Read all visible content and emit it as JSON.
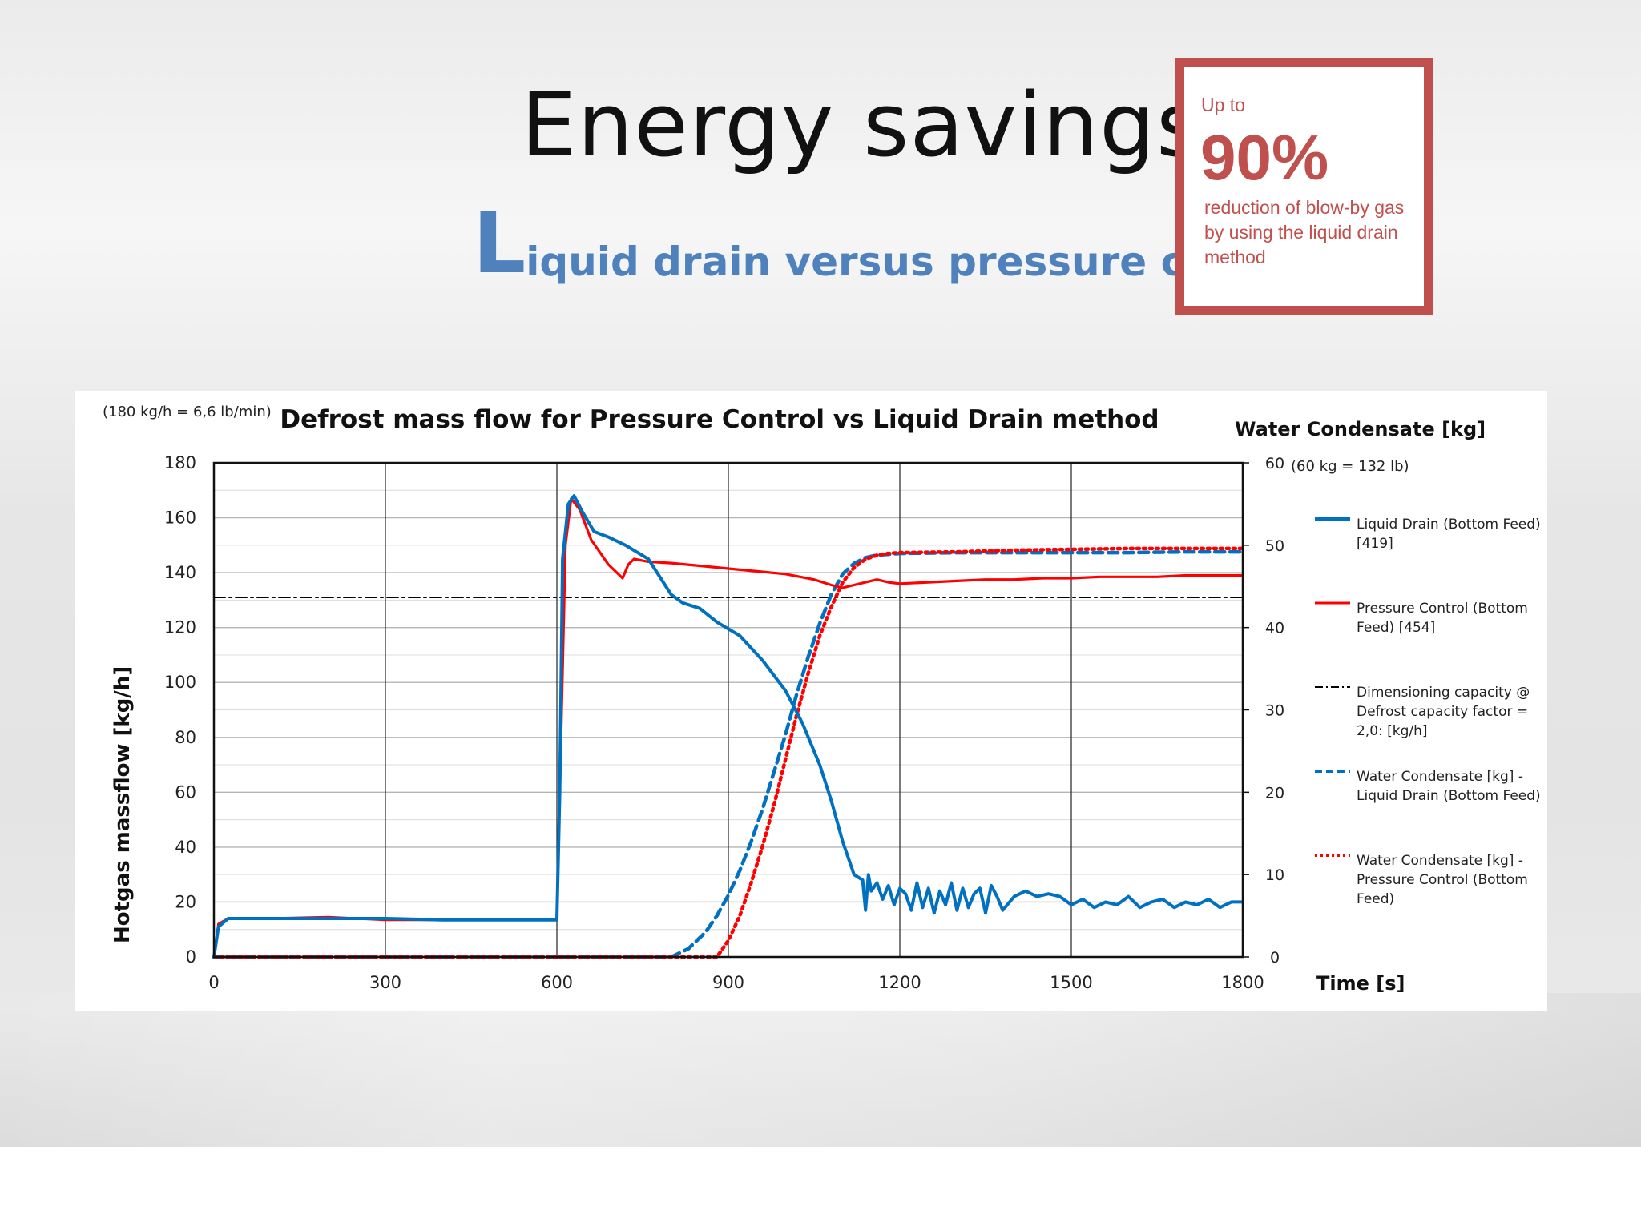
{
  "slide": {
    "title": "Energy savings",
    "subtitle_initial": "L",
    "subtitle_rest": "iquid drain versus pressure control",
    "accent_color": "#4f81bd",
    "callout_color": "#c0504d"
  },
  "callout": {
    "prefix": "Up to",
    "value": "90%",
    "description": "reduction of blow-by gas by using the liquid drain method"
  },
  "chart_data": {
    "type": "line",
    "title": "Defrost mass flow for Pressure Control vs Liquid Drain method",
    "note_left": "(180 kg/h = 6,6 lb/min)",
    "ylabel": "Hotgas massflow [kg/h]",
    "y2label": "Water Condensate [kg]",
    "y2_note": "(60 kg = 132 lb)",
    "xlabel": "Time [s]",
    "xlim": [
      0,
      1800
    ],
    "ylim": [
      0,
      180
    ],
    "y2lim": [
      0,
      60
    ],
    "xticks": [
      0,
      300,
      600,
      900,
      1200,
      1500,
      1800
    ],
    "yticks": [
      0,
      20,
      40,
      60,
      80,
      100,
      120,
      140,
      160,
      180
    ],
    "y2ticks": [
      0,
      10,
      20,
      30,
      40,
      50,
      60
    ],
    "grid": true,
    "legend_position": "right",
    "series": [
      {
        "name": "Liquid Drain (Bottom Feed) [419]",
        "axis": "left",
        "color": "#0070c0",
        "style": "solid",
        "x": [
          0,
          8,
          25,
          100,
          200,
          300,
          400,
          500,
          590,
          600,
          605,
          610,
          620,
          630,
          645,
          665,
          690,
          720,
          760,
          800,
          820,
          850,
          880,
          920,
          960,
          1000,
          1030,
          1060,
          1080,
          1100,
          1120,
          1135,
          1140,
          1145,
          1150,
          1160,
          1170,
          1180,
          1190,
          1200,
          1210,
          1220,
          1230,
          1240,
          1250,
          1260,
          1270,
          1280,
          1290,
          1300,
          1310,
          1320,
          1330,
          1340,
          1350,
          1360,
          1370,
          1380,
          1400,
          1420,
          1440,
          1460,
          1480,
          1500,
          1520,
          1540,
          1560,
          1580,
          1600,
          1620,
          1640,
          1660,
          1680,
          1700,
          1720,
          1740,
          1760,
          1780,
          1800
        ],
        "y": [
          0,
          11,
          14,
          14,
          14,
          14,
          13.5,
          13.5,
          13.5,
          13.5,
          60,
          145,
          165,
          168,
          162,
          155,
          153,
          150,
          145,
          132,
          129,
          127,
          122,
          117,
          108,
          97,
          85,
          70,
          57,
          42,
          30,
          28,
          17,
          30,
          24,
          27,
          21,
          26,
          19,
          25,
          23,
          17,
          27,
          18,
          25,
          16,
          24,
          19,
          27,
          17,
          25,
          18,
          23,
          25,
          16,
          26,
          22,
          17,
          22,
          24,
          22,
          23,
          22,
          19,
          21,
          18,
          20,
          19,
          22,
          18,
          20,
          21,
          18,
          20,
          19,
          21,
          18,
          20,
          20
        ]
      },
      {
        "name": "Pressure Control (Bottom Feed) [454]",
        "axis": "left",
        "color": "#ff0000",
        "style": "solid",
        "x": [
          0,
          8,
          25,
          100,
          200,
          300,
          400,
          500,
          590,
          600,
          605,
          615,
          625,
          640,
          660,
          690,
          715,
          725,
          735,
          760,
          800,
          850,
          900,
          950,
          1000,
          1050,
          1080,
          1100,
          1120,
          1140,
          1160,
          1180,
          1200,
          1250,
          1300,
          1350,
          1400,
          1450,
          1500,
          1550,
          1600,
          1650,
          1700,
          1750,
          1800
        ],
        "y": [
          0,
          12,
          14,
          14,
          14.5,
          13.5,
          13.5,
          13.5,
          13.5,
          13.5,
          60,
          150,
          167,
          163,
          152,
          143,
          138,
          143,
          145,
          144,
          143.5,
          142.5,
          141.5,
          140.5,
          139.5,
          137.5,
          135.5,
          134.5,
          135.5,
          136.5,
          137.5,
          136.5,
          136,
          136.5,
          137,
          137.5,
          137.5,
          138,
          138,
          138.5,
          138.5,
          138.5,
          139,
          139,
          139
        ]
      },
      {
        "name": "Dimensioning capacity @ Defrost capacity factor = 2,0: [kg/h]",
        "axis": "left",
        "color": "#000000",
        "style": "dashdot",
        "x": [
          0,
          1800
        ],
        "y": [
          131,
          131
        ]
      },
      {
        "name": "Water Condensate [kg] - Liquid Drain (Bottom Feed)",
        "axis": "right",
        "color": "#0070c0",
        "style": "dashed",
        "x": [
          0,
          700,
          800,
          830,
          860,
          880,
          900,
          920,
          940,
          960,
          980,
          1000,
          1020,
          1040,
          1060,
          1080,
          1100,
          1120,
          1140,
          1160,
          1200,
          1300,
          1400,
          1500,
          1600,
          1700,
          1800
        ],
        "y": [
          0,
          0,
          0,
          1,
          3,
          5,
          7.5,
          10.5,
          14,
          18,
          22.5,
          27,
          32,
          36.5,
          40.5,
          44,
          46.5,
          47.8,
          48.5,
          48.8,
          49,
          49.1,
          49.1,
          49.1,
          49.1,
          49.2,
          49.2
        ]
      },
      {
        "name": "Water Condensate [kg] - Pressure Control (Bottom Feed)",
        "axis": "right",
        "color": "#ff0000",
        "style": "dotted",
        "x": [
          0,
          800,
          880,
          900,
          920,
          940,
          960,
          980,
          1000,
          1020,
          1040,
          1060,
          1080,
          1100,
          1120,
          1140,
          1160,
          1180,
          1200,
          1300,
          1400,
          1500,
          1600,
          1700,
          1800
        ],
        "y": [
          0,
          0,
          0,
          2,
          5,
          9,
          13.5,
          18.5,
          24,
          29.5,
          34.5,
          39,
          42.5,
          45.5,
          47.3,
          48.3,
          48.8,
          49,
          49.1,
          49.2,
          49.4,
          49.5,
          49.6,
          49.6,
          49.6
        ]
      }
    ]
  },
  "legend": [
    {
      "label": "Liquid Drain  (Bottom Feed) [419]",
      "color": "#0070c0",
      "style": "solid"
    },
    {
      "label": "Pressure Control (Bottom Feed) [454]",
      "color": "#ff0000",
      "style": "solid"
    },
    {
      "label": "Dimensioning capacity @ Defrost capacity factor = 2,0:   [kg/h]",
      "color": "#000000",
      "style": "dashdot"
    },
    {
      "label": "Water Condensate [kg] - Liquid Drain (Bottom Feed)",
      "color": "#0070c0",
      "style": "dashed"
    },
    {
      "label": "Water Condensate [kg] - Pressure Control (Bottom Feed)",
      "color": "#ff0000",
      "style": "dotted"
    }
  ]
}
